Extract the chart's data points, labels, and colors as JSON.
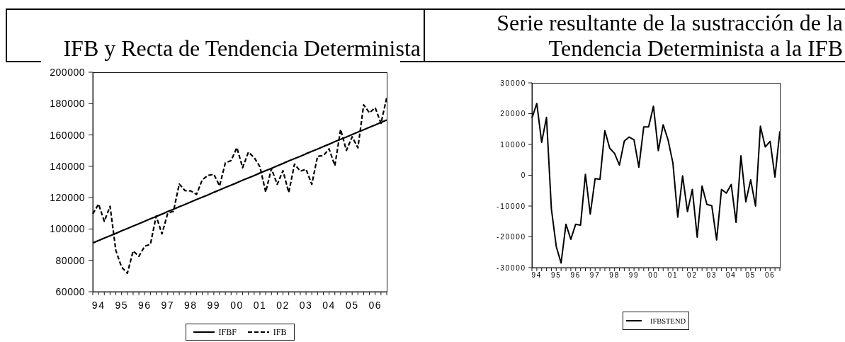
{
  "chart_data": [
    {
      "type": "line",
      "title": "IFB y Recta de Tendencia Determinista",
      "categories": [
        null,
        "94",
        null,
        null,
        null,
        "95",
        null,
        null,
        null,
        "96",
        null,
        null,
        null,
        "97",
        null,
        null,
        null,
        "98",
        null,
        null,
        null,
        "99",
        null,
        null,
        null,
        "00",
        null,
        null,
        null,
        "01",
        null,
        null,
        null,
        "02",
        null,
        null,
        null,
        "03",
        null,
        null,
        null,
        "04",
        null,
        null,
        null,
        "05",
        null,
        null,
        null,
        "06",
        null,
        null
      ],
      "series": [
        {
          "name": "IFBF",
          "color": "#000000",
          "values": [
            91100,
            92600,
            94200,
            95700,
            97200,
            98800,
            100300,
            101900,
            103400,
            104900,
            106500,
            108000,
            109500,
            111100,
            112600,
            114200,
            115700,
            117200,
            118800,
            120300,
            121800,
            123400,
            124900,
            126500,
            128000,
            129500,
            131100,
            132600,
            134100,
            135700,
            137200,
            138700,
            140300,
            141800,
            143400,
            144900,
            146400,
            148000,
            149500,
            151000,
            152600,
            154100,
            155700,
            157200,
            158700,
            160300,
            161800,
            163300,
            164900,
            166400,
            168000,
            169500
          ]
        },
        {
          "name": "IFB",
          "color": "#000000",
          "line_style": "dashed",
          "values": [
            109600,
            115900,
            104900,
            114500,
            86300,
            75700,
            71800,
            86000,
            82600,
            89000,
            90300,
            108300,
            96900,
            110000,
            111300,
            128700,
            124500,
            124300,
            122100,
            131400,
            134200,
            134900,
            127500,
            142200,
            143700,
            151900,
            139100,
            149000,
            145600,
            139700,
            123600,
            138500,
            128500,
            137200,
            123300,
            141400,
            136900,
            138100,
            128500,
            146400,
            146800,
            151100,
            140400,
            163500,
            150100,
            158800,
            151800,
            179200,
            174100,
            177400,
            167400,
            183800
          ]
        }
      ],
      "ylim": [
        60000,
        200000
      ],
      "yticks": [
        60000,
        80000,
        100000,
        120000,
        140000,
        160000,
        180000,
        200000
      ],
      "legend": "bottom"
    },
    {
      "type": "line",
      "title": "Serie resultante de la sustracción de la Tendencia Determinista a la IFB",
      "categories": [
        null,
        "94",
        null,
        null,
        null,
        "95",
        null,
        null,
        null,
        "96",
        null,
        null,
        null,
        "97",
        null,
        null,
        null,
        "98",
        null,
        null,
        null,
        "99",
        null,
        null,
        null,
        "00",
        null,
        null,
        null,
        "01",
        null,
        null,
        null,
        "02",
        null,
        null,
        null,
        "03",
        null,
        null,
        null,
        "04",
        null,
        null,
        null,
        "05",
        null,
        null,
        null,
        "06",
        null,
        null
      ],
      "series": [
        {
          "name": "IFBSTEND",
          "color": "#000000",
          "values": [
            18500,
            23300,
            10700,
            18800,
            -10900,
            -23100,
            -28500,
            -15900,
            -20800,
            -15900,
            -16200,
            300,
            -12600,
            -1100,
            -1300,
            14500,
            8800,
            7100,
            3300,
            11100,
            12400,
            11500,
            2600,
            15700,
            15700,
            22400,
            8000,
            16400,
            11500,
            4000,
            -13600,
            -200,
            -11800,
            -4600,
            -20100,
            -3500,
            -9500,
            -9900,
            -21000,
            -4600,
            -5800,
            -3000,
            -15300,
            6300,
            -8600,
            -1500,
            -10000,
            15900,
            9200,
            11000,
            -600,
            14300
          ]
        }
      ],
      "ylim": [
        -30000,
        30000
      ],
      "yticks": [
        -30000,
        -20000,
        -10000,
        0,
        10000,
        20000,
        30000
      ],
      "legend": "bottom"
    }
  ]
}
